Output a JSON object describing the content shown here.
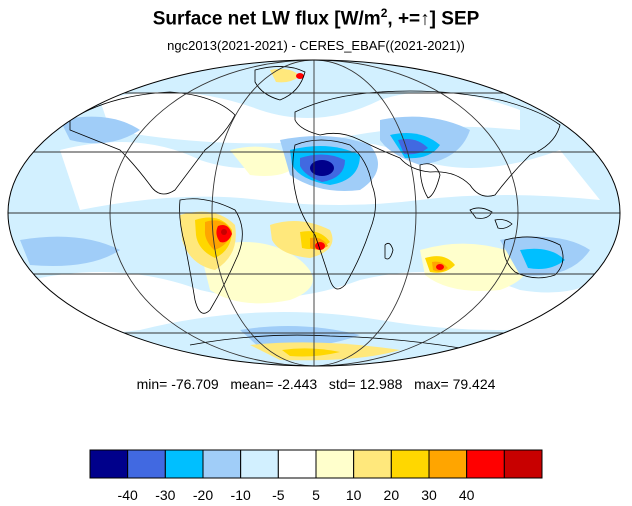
{
  "title": {
    "main": "Surface net LW flux [W/m",
    "sup": "2",
    "rest": ", +=",
    "arrow": "↑",
    "month_prefix": "]  ",
    "month": "SEP"
  },
  "subtitle": "ngc2013(2021-2021) - CERES_EBAF((2021-2021))",
  "stats": {
    "min_label": "min=",
    "min": "-76.709",
    "mean_label": "mean=",
    "mean": "-2.443",
    "std_label": "std=",
    "std": "12.988",
    "max_label": "max=",
    "max": "79.424"
  },
  "colorbar": {
    "colors": [
      "#00008b",
      "#4169e1",
      "#00bfff",
      "#a0cdf8",
      "#d2f0ff",
      "#ffffff",
      "#ffffcc",
      "#ffe87c",
      "#ffd700",
      "#ffa500",
      "#ff0000",
      "#c80000"
    ],
    "tick_labels": [
      "-40",
      "-30",
      "-20",
      "-10",
      "-5",
      "5",
      "10",
      "20",
      "30",
      "40"
    ]
  },
  "palette": {
    "strong_negative": "#00008b",
    "negative": "#4169e1",
    "light_negative": "#a0cdf8",
    "positive": "#ffd700",
    "strong_positive": "#ff0000"
  }
}
